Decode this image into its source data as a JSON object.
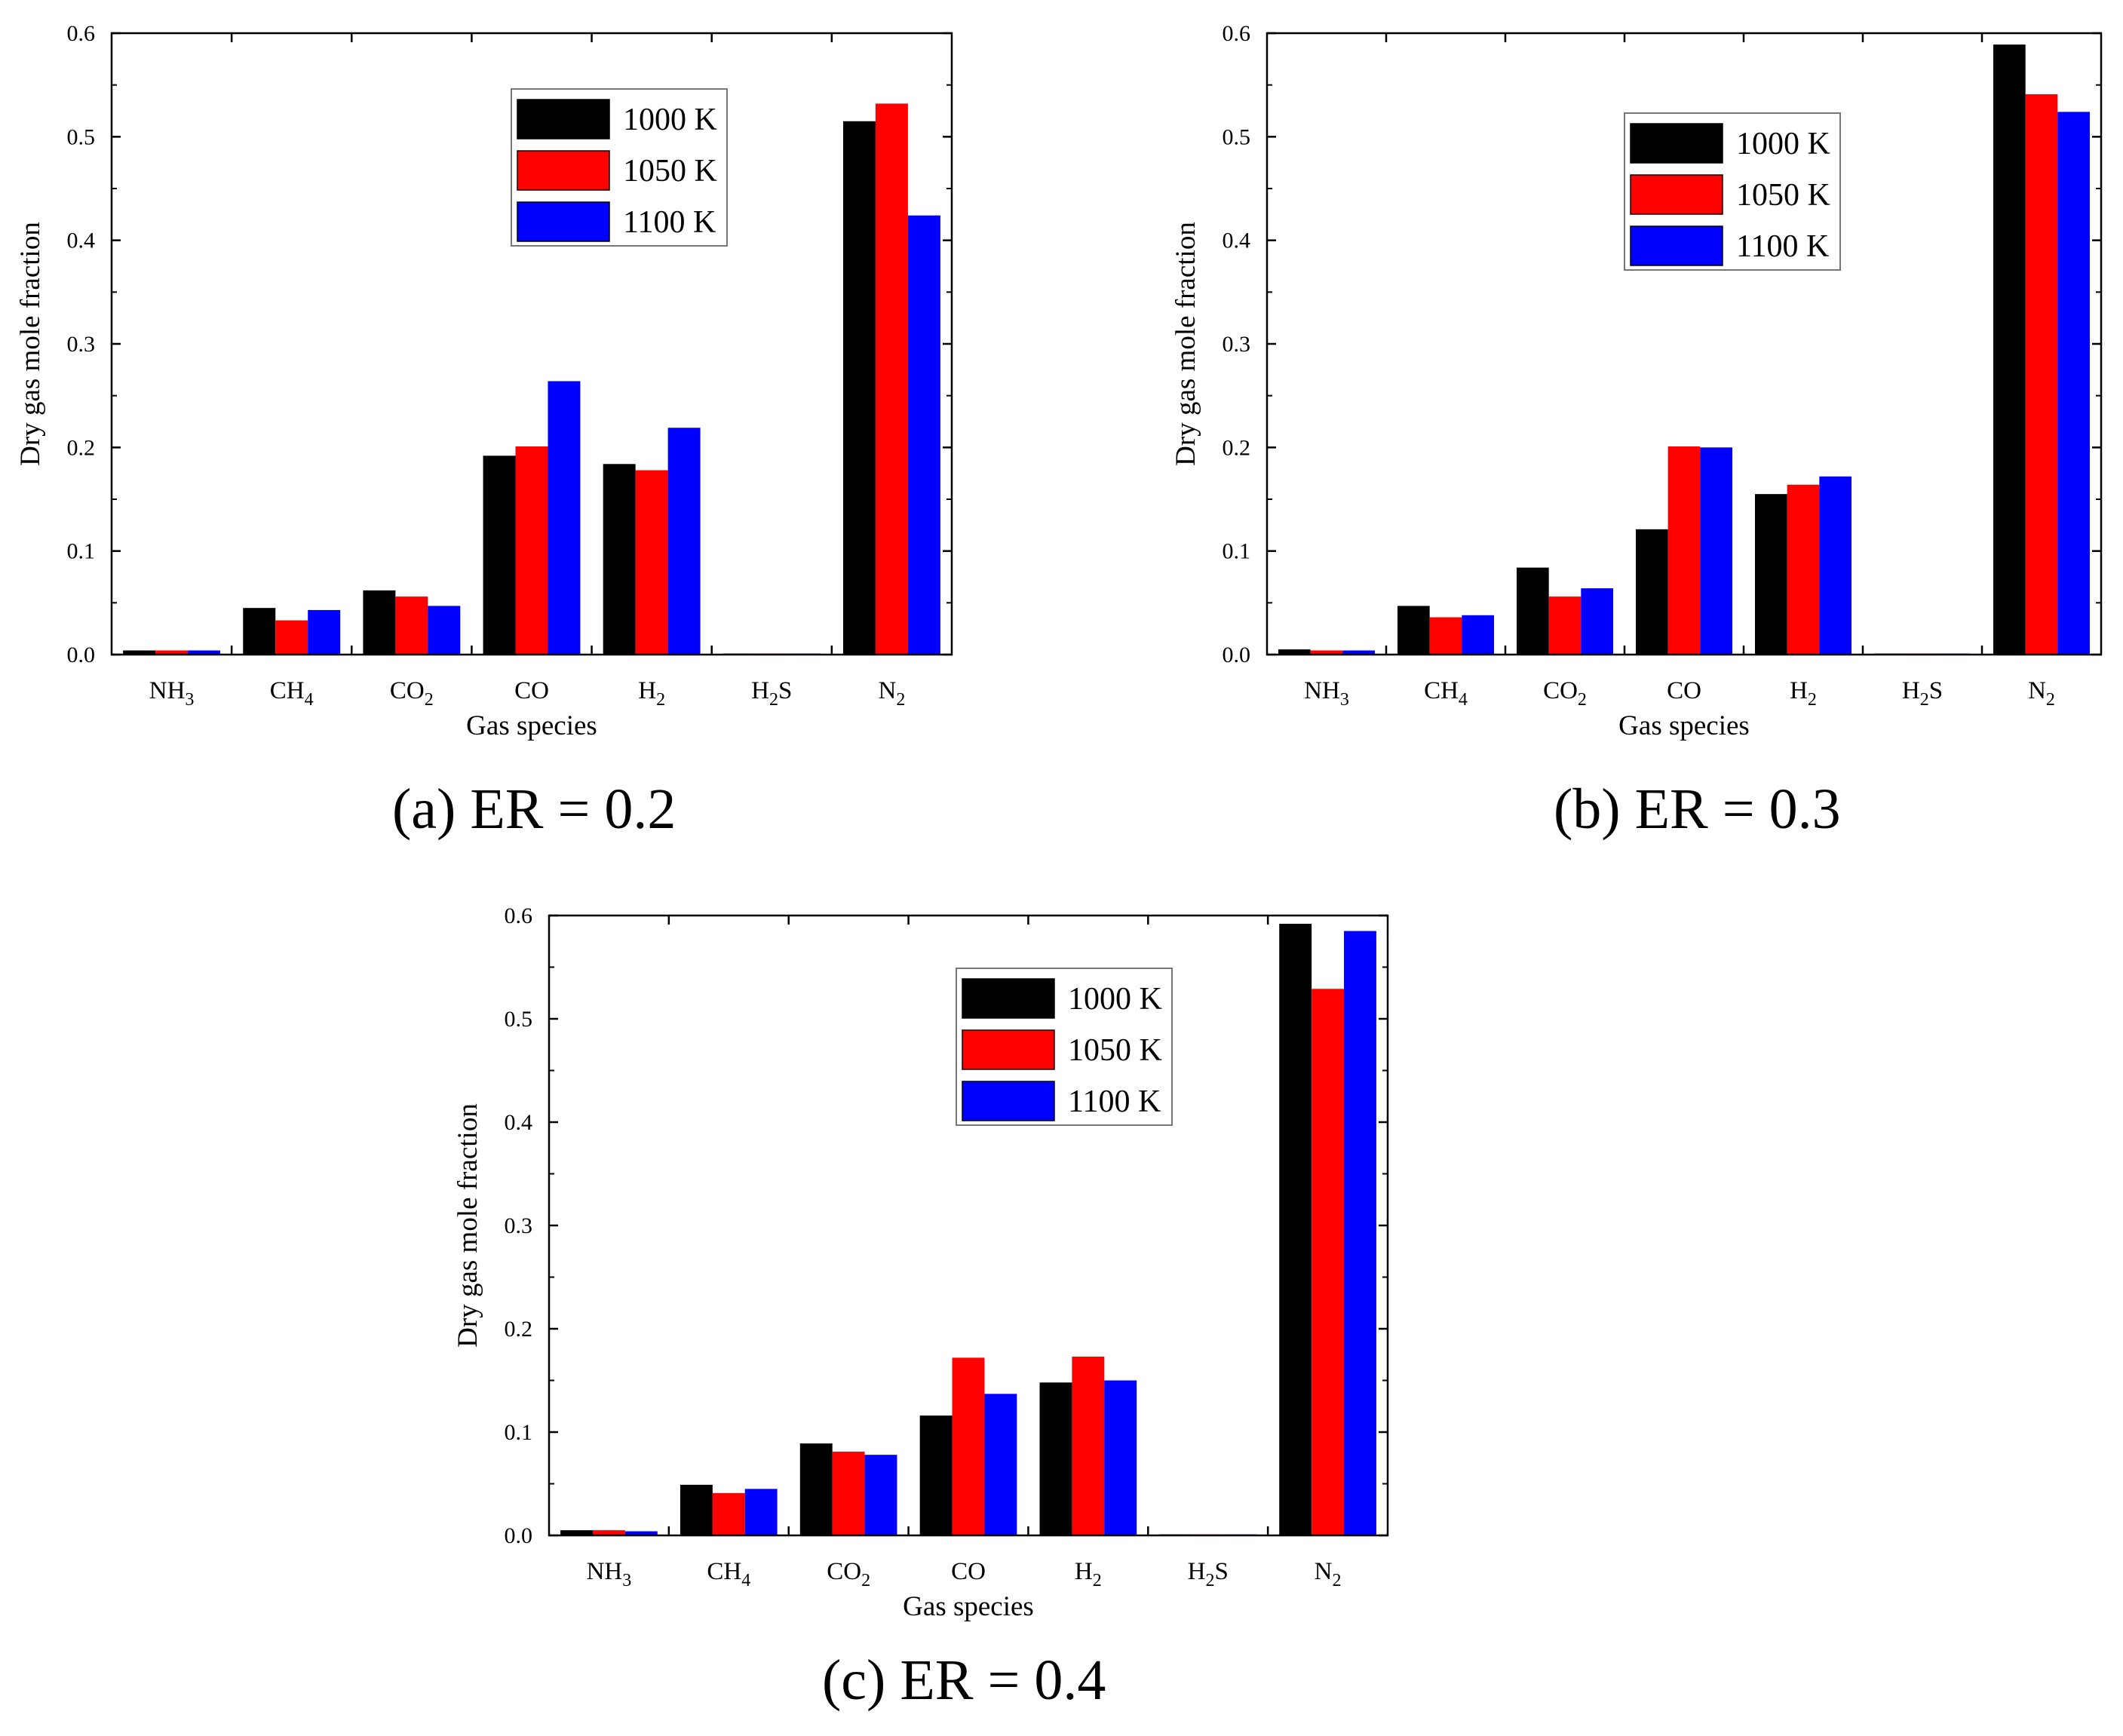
{
  "chart_data": [
    {
      "type": "bar",
      "caption": "(a) ER = 0.2",
      "xlabel": "Gas species",
      "ylabel": "Dry gas mole fraction",
      "ylim": [
        0,
        0.6
      ],
      "yticks": [
        "0.0",
        "0.1",
        "0.2",
        "0.3",
        "0.4",
        "0.5",
        "0.6"
      ],
      "categories": [
        "NH3",
        "CH4",
        "CO2",
        "CO",
        "H2",
        "H2S",
        "N2"
      ],
      "legend_position": "top-right",
      "series": [
        {
          "name": "1000 K",
          "color": "#000000",
          "values": [
            0.004,
            0.045,
            0.062,
            0.192,
            0.184,
            0.001,
            0.515
          ]
        },
        {
          "name": "1050 K",
          "color": "#ff0000",
          "values": [
            0.004,
            0.033,
            0.056,
            0.201,
            0.178,
            0.001,
            0.532
          ]
        },
        {
          "name": "1100 K",
          "color": "#0000ff",
          "values": [
            0.004,
            0.043,
            0.047,
            0.264,
            0.219,
            0.001,
            0.424
          ]
        }
      ]
    },
    {
      "type": "bar",
      "caption": "(b) ER = 0.3",
      "xlabel": "Gas species",
      "ylabel": "Dry gas mole fraction",
      "ylim": [
        0,
        0.6
      ],
      "yticks": [
        "0.0",
        "0.1",
        "0.2",
        "0.3",
        "0.4",
        "0.5",
        "0.6"
      ],
      "categories": [
        "NH3",
        "CH4",
        "CO2",
        "CO",
        "H2",
        "H2S",
        "N2"
      ],
      "legend_position": "top-right",
      "series": [
        {
          "name": "1000 K",
          "color": "#000000",
          "values": [
            0.005,
            0.047,
            0.084,
            0.121,
            0.155,
            0.001,
            0.589
          ]
        },
        {
          "name": "1050 K",
          "color": "#ff0000",
          "values": [
            0.004,
            0.036,
            0.056,
            0.201,
            0.164,
            0.001,
            0.541
          ]
        },
        {
          "name": "1100 K",
          "color": "#0000ff",
          "values": [
            0.004,
            0.038,
            0.064,
            0.2,
            0.172,
            0.001,
            0.524
          ]
        }
      ]
    },
    {
      "type": "bar",
      "caption": "(c) ER = 0.4",
      "xlabel": "Gas species",
      "ylabel": "Dry gas mole fraction",
      "ylim": [
        0,
        0.6
      ],
      "yticks": [
        "0.0",
        "0.1",
        "0.2",
        "0.3",
        "0.4",
        "0.5",
        "0.6"
      ],
      "categories": [
        "NH3",
        "CH4",
        "CO2",
        "CO",
        "H2",
        "H2S",
        "N2"
      ],
      "legend_position": "top-right",
      "series": [
        {
          "name": "1000 K",
          "color": "#000000",
          "values": [
            0.005,
            0.049,
            0.089,
            0.116,
            0.148,
            0.001,
            0.592
          ]
        },
        {
          "name": "1050 K",
          "color": "#ff0000",
          "values": [
            0.005,
            0.041,
            0.081,
            0.172,
            0.173,
            0.001,
            0.529
          ]
        },
        {
          "name": "1100 K",
          "color": "#0000ff",
          "values": [
            0.004,
            0.045,
            0.078,
            0.137,
            0.15,
            0.001,
            0.585
          ]
        }
      ]
    }
  ]
}
